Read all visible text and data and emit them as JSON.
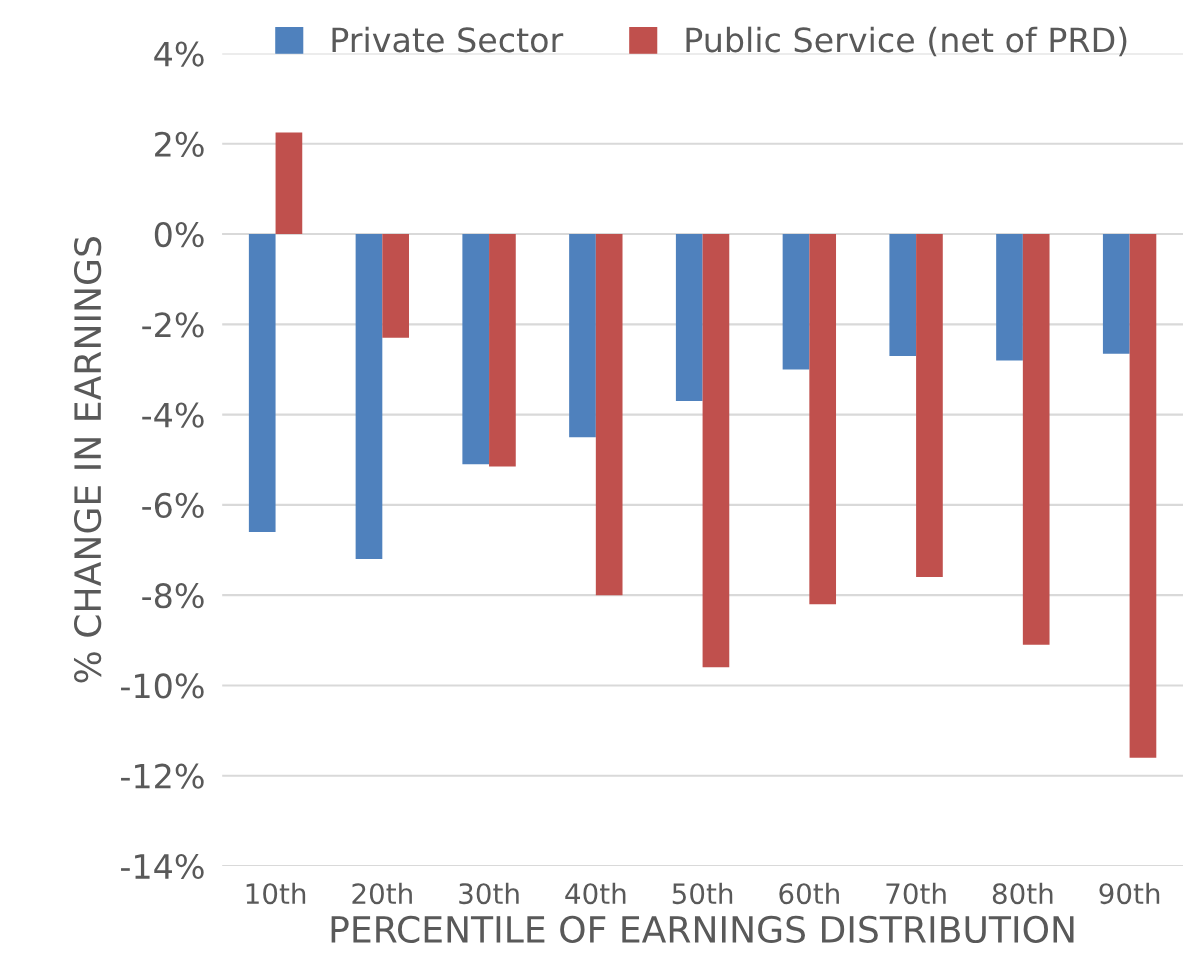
{
  "chart_data": {
    "type": "bar",
    "xlabel": "PERCENTILE OF EARNINGS DISTRIBUTION",
    "ylabel": "% CHANGE IN EARNINGS",
    "categories": [
      "10th",
      "20th",
      "30th",
      "40th",
      "50th",
      "60th",
      "70th",
      "80th",
      "90th"
    ],
    "series": [
      {
        "name": "Private Sector",
        "color": "#4f81bd",
        "values": [
          -6.6,
          -7.2,
          -5.1,
          -4.5,
          -3.7,
          -3.0,
          -2.7,
          -2.8,
          -2.65
        ]
      },
      {
        "name": "Public Service (net of PRD)",
        "color": "#c0504d",
        "values": [
          2.25,
          -2.3,
          -5.15,
          -8.0,
          -9.6,
          -8.2,
          -7.6,
          -9.1,
          -11.6
        ]
      }
    ],
    "ylim": [
      -14,
      4
    ],
    "yticks": [
      {
        "value": 4,
        "label": "4%"
      },
      {
        "value": 2,
        "label": "2%"
      },
      {
        "value": 0,
        "label": "0%"
      },
      {
        "value": -2,
        "label": "-2%"
      },
      {
        "value": -4,
        "label": "-4%"
      },
      {
        "value": -6,
        "label": "-6%"
      },
      {
        "value": -8,
        "label": "-8%"
      },
      {
        "value": -10,
        "label": "-10%"
      },
      {
        "value": -12,
        "label": "-12%"
      },
      {
        "value": -14,
        "label": "-14%"
      }
    ],
    "grid": "y",
    "legend": "top"
  }
}
